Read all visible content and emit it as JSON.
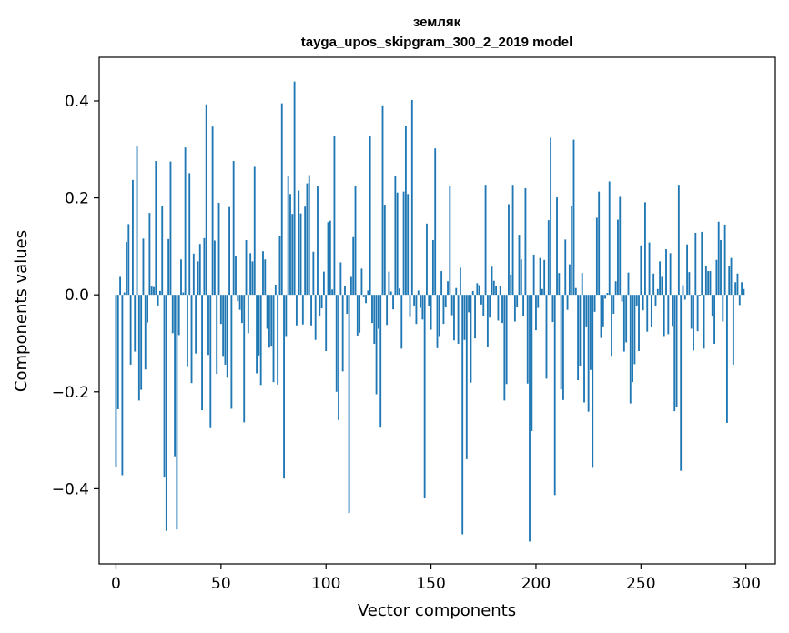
{
  "chart_data": {
    "type": "bar",
    "title": "землякtayga_upos_skipgram_300_2_2019 model",
    "title_lines": [
      "земляк",
      "tayga_upos_skipgram_300_2_2019 model"
    ],
    "xlabel": "Vector components",
    "ylabel": "Components values",
    "xlim": [
      -8,
      314
    ],
    "ylim": [
      -0.555,
      0.49
    ],
    "x_ticks": [
      0,
      50,
      100,
      150,
      200,
      250,
      300
    ],
    "x_tick_labels": [
      "0",
      "50",
      "100",
      "150",
      "200",
      "250",
      "300"
    ],
    "y_ticks": [
      -0.4,
      -0.2,
      0.0,
      0.2,
      0.4
    ],
    "y_tick_labels": [
      "−0.4",
      "−0.2",
      "0.0",
      "0.2",
      "0.4"
    ],
    "bar_color": "#1f77b4",
    "grid": false,
    "x": "0..299",
    "values": [
      -0.355,
      -0.236,
      0.037,
      -0.372,
      0.005,
      0.109,
      0.146,
      -0.144,
      0.237,
      -0.117,
      0.306,
      -0.218,
      -0.196,
      0.116,
      -0.154,
      -0.057,
      0.169,
      0.017,
      0.016,
      0.276,
      -0.022,
      0.008,
      0.184,
      -0.377,
      -0.487,
      0.115,
      0.275,
      -0.079,
      -0.333,
      -0.484,
      -0.083,
      0.073,
      0.005,
      0.304,
      -0.147,
      0.251,
      -0.182,
      0.085,
      -0.121,
      0.069,
      0.105,
      -0.238,
      0.117,
      0.393,
      -0.124,
      -0.275,
      0.347,
      0.112,
      -0.163,
      0.19,
      -0.06,
      -0.126,
      -0.144,
      -0.171,
      0.181,
      -0.235,
      0.276,
      0.08,
      -0.013,
      -0.031,
      -0.058,
      -0.263,
      0.113,
      -0.079,
      0.086,
      0.069,
      0.264,
      -0.162,
      -0.125,
      -0.186,
      0.09,
      0.073,
      -0.07,
      -0.109,
      -0.105,
      -0.18,
      0.021,
      -0.185,
      0.121,
      0.395,
      -0.379,
      -0.085,
      0.245,
      0.208,
      0.167,
      0.44,
      -0.063,
      0.215,
      0.168,
      -0.061,
      0.182,
      0.23,
      0.247,
      -0.063,
      0.089,
      -0.093,
      0.225,
      -0.043,
      -0.028,
      0.048,
      -0.116,
      0.15,
      0.153,
      0.011,
      0.328,
      -0.2,
      -0.258,
      0.067,
      -0.158,
      0.019,
      -0.039,
      -0.45,
      0.037,
      0.119,
      0.224,
      -0.084,
      -0.078,
      0.054,
      -0.005,
      -0.017,
      0.009,
      0.328,
      -0.058,
      -0.101,
      -0.205,
      -0.07,
      -0.274,
      0.391,
      0.186,
      -0.062,
      0.048,
      0.007,
      -0.03,
      0.245,
      0.211,
      0.013,
      -0.111,
      0.213,
      0.348,
      0.208,
      -0.046,
      0.402,
      -0.022,
      -0.06,
      0.009,
      -0.027,
      -0.051,
      -0.42,
      0.147,
      -0.024,
      -0.072,
      0.113,
      0.302,
      -0.11,
      -0.085,
      0.049,
      -0.06,
      -0.026,
      0.028,
      0.224,
      -0.042,
      -0.094,
      0.014,
      -0.101,
      0.056,
      -0.494,
      -0.093,
      -0.339,
      -0.036,
      -0.181,
      0.008,
      -0.09,
      0.024,
      0.02,
      -0.02,
      -0.044,
      0.227,
      -0.108,
      -0.047,
      0.058,
      0.029,
      0.019,
      -0.053,
      0.019,
      -0.058,
      -0.218,
      -0.184,
      0.187,
      0.042,
      0.227,
      -0.055,
      -0.026,
      0.124,
      0.073,
      -0.043,
      0.22,
      -0.183,
      -0.509,
      -0.281,
      0.083,
      -0.073,
      -0.027,
      0.076,
      0.012,
      0.072,
      -0.173,
      0.154,
      0.324,
      -0.056,
      -0.413,
      0.201,
      0.045,
      -0.195,
      -0.217,
      0.114,
      -0.031,
      0.063,
      0.183,
      0.32,
      0.014,
      -0.176,
      -0.146,
      0.045,
      -0.222,
      -0.065,
      -0.241,
      -0.155,
      -0.357,
      -0.035,
      0.159,
      0.213,
      -0.089,
      -0.065,
      -0.008,
      0.004,
      0.234,
      -0.126,
      -0.039,
      0.028,
      0.155,
      0.202,
      -0.014,
      -0.117,
      -0.098,
      0.046,
      -0.224,
      -0.18,
      -0.143,
      -0.022,
      -0.116,
      0.102,
      -0.032,
      0.191,
      -0.076,
      0.108,
      -0.067,
      0.044,
      -0.024,
      0.012,
      0.069,
      0.037,
      -0.085,
      0.094,
      -0.081,
      0.086,
      -0.064,
      -0.24,
      -0.231,
      0.227,
      -0.363,
      0.02,
      -0.01,
      0.104,
      0.047,
      -0.07,
      -0.115,
      0.128,
      -0.075,
      -0.002,
      0.13,
      -0.111,
      0.059,
      0.049,
      0.049,
      -0.045,
      -0.101,
      0.072,
      0.151,
      0.113,
      -0.055,
      0.145,
      -0.264,
      0.06,
      0.076,
      -0.144,
      0.026,
      0.044,
      -0.021,
      0.026,
      0.012
    ]
  }
}
